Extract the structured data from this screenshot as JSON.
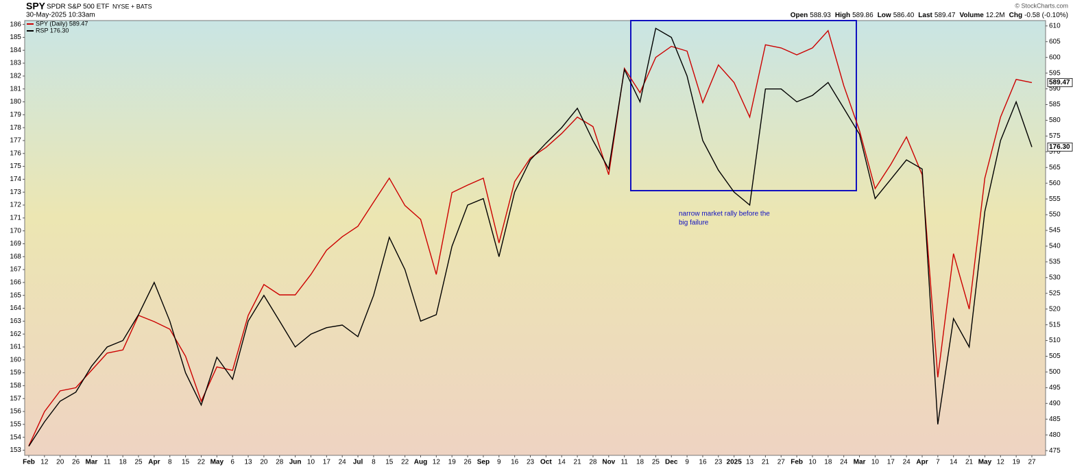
{
  "chart_data": {
    "type": "line",
    "symbol": "SPY",
    "title": "SPDR S&P 500 ETF",
    "exchange": "NYSE + BATS",
    "date": "30-May-2025 10:33am",
    "stats": [
      {
        "label": "Open",
        "value": "588.93"
      },
      {
        "label": "High",
        "value": "589.86"
      },
      {
        "label": "Low",
        "value": "586.40"
      },
      {
        "label": "Last",
        "value": "589.47"
      },
      {
        "label": "Volume",
        "value": "12.2M"
      },
      {
        "label": "Chg",
        "value": "-0.58 (-0.10%)"
      }
    ],
    "credit": "© StockCharts.com",
    "annotation": [
      "narrow market rally before the",
      "big failure"
    ],
    "categories": [
      "Feb",
      "12",
      "20",
      "26",
      "Mar",
      "11",
      "18",
      "25",
      "Apr",
      "8",
      "15",
      "22",
      "May",
      "6",
      "13",
      "20",
      "28",
      "Jun",
      "10",
      "17",
      "24",
      "Jul",
      "8",
      "15",
      "22",
      "Aug",
      "12",
      "19",
      "26",
      "Sep",
      "9",
      "16",
      "23",
      "Oct",
      "14",
      "21",
      "28",
      "Nov",
      "11",
      "18",
      "25",
      "Dec",
      "9",
      "16",
      "23",
      "2025",
      "13",
      "21",
      "27",
      "Feb",
      "10",
      "18",
      "24",
      "Mar",
      "10",
      "17",
      "24",
      "Apr",
      "7",
      "14",
      "21",
      "May",
      "12",
      "19",
      "27"
    ],
    "series": [
      {
        "name": "SPY (Daily) 589.47",
        "color": "#cc0000",
        "axis": "y2",
        "values": [
          476.5,
          487.4,
          494,
          495,
          500.5,
          506,
          507,
          518,
          516,
          513.6,
          505,
          490.7,
          501.6,
          500.5,
          518,
          527.8,
          524.5,
          524.5,
          531,
          538.7,
          543,
          546.3,
          554,
          561.6,
          552.9,
          548.5,
          531,
          557,
          559.4,
          561.6,
          541,
          560.5,
          568,
          571.4,
          575.8,
          581,
          578,
          562.7,
          596.5,
          588.8,
          600,
          603.5,
          602,
          585.6,
          597.6,
          592,
          581,
          604,
          603,
          600.8,
          603,
          608.5,
          591,
          576.8,
          558.3,
          566,
          574.7,
          562.7,
          498.3,
          537.6,
          520,
          561.6,
          581,
          593,
          592
        ]
      },
      {
        "name": "RSP 176.30",
        "color": "#000000",
        "axis": "y",
        "values": [
          153.3,
          155.2,
          156.8,
          157.5,
          159.5,
          161,
          161.5,
          163.5,
          166,
          163,
          159,
          156.5,
          160.2,
          158.5,
          163,
          165,
          163,
          161,
          162,
          162.5,
          162.7,
          161.8,
          165,
          169.5,
          167,
          163,
          163.5,
          168.8,
          172,
          172.5,
          168,
          173,
          175.5,
          176.8,
          178,
          179.5,
          177,
          174.8,
          182.5,
          180,
          185.7,
          185,
          182,
          177,
          174.7,
          173,
          172,
          181,
          181,
          180,
          180.5,
          181.5,
          179.5,
          177.5,
          172.5,
          174,
          175.5,
          174.8,
          155,
          163.2,
          161,
          171.5,
          177,
          180,
          176.5
        ]
      }
    ],
    "price_labels": [
      "589.47",
      "176.30"
    ],
    "ylim": [
      152.6,
      186.3
    ],
    "yticks": [
      153,
      154,
      155,
      156,
      157,
      158,
      159,
      160,
      161,
      162,
      163,
      164,
      165,
      166,
      167,
      168,
      169,
      170,
      171,
      172,
      173,
      174,
      175,
      176,
      177,
      178,
      179,
      180,
      181,
      182,
      183,
      184,
      185,
      186
    ],
    "y2lim": [
      473.5,
      611.7
    ],
    "y2ticks": [
      475,
      480,
      485,
      490,
      495,
      500,
      505,
      510,
      515,
      520,
      525,
      530,
      535,
      540,
      545,
      550,
      555,
      560,
      565,
      570,
      575,
      580,
      585,
      590,
      595,
      600,
      605,
      610
    ],
    "grid": false
  }
}
